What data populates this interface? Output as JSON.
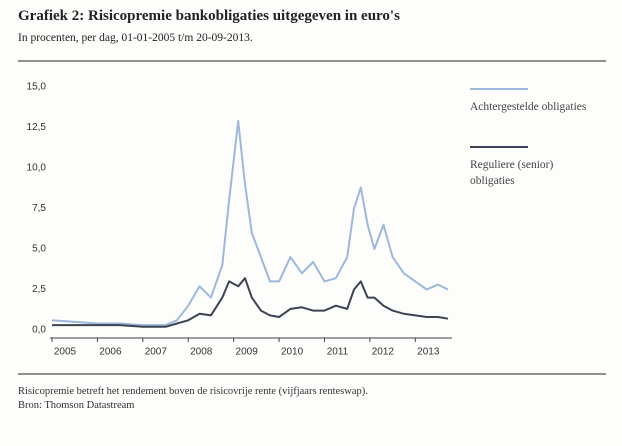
{
  "chart_data": {
    "type": "line",
    "title": "Grafiek 2: Risicopremie bankobligaties uitgegeven in euro's",
    "subtitle": "In procenten, per dag, 01-01-2005 t/m 20-09-2013.",
    "footnote": "Risicopremie betreft het rendement boven de risicovrije rente (vijfjaars renteswap).",
    "source": "Bron: Thomson Datastream",
    "x": [
      2005,
      2005.5,
      2006,
      2006.5,
      2007,
      2007.5,
      2007.75,
      2008,
      2008.25,
      2008.5,
      2008.75,
      2008.9,
      2009.1,
      2009.25,
      2009.4,
      2009.6,
      2009.8,
      2010,
      2010.25,
      2010.5,
      2010.75,
      2011,
      2011.25,
      2011.5,
      2011.65,
      2011.8,
      2011.95,
      2012.1,
      2012.3,
      2012.5,
      2012.75,
      2013,
      2013.25,
      2013.5,
      2013.72
    ],
    "series": [
      {
        "name": "Achtergestelde obligaties",
        "color": "#9cb8dd",
        "values": [
          0.6,
          0.5,
          0.4,
          0.4,
          0.3,
          0.3,
          0.6,
          1.5,
          2.7,
          2.0,
          4.0,
          8.0,
          12.9,
          9.0,
          6.0,
          4.5,
          3.0,
          3.0,
          4.5,
          3.5,
          4.2,
          3.0,
          3.2,
          4.5,
          7.5,
          8.8,
          6.5,
          5.0,
          6.5,
          4.5,
          3.5,
          3.0,
          2.5,
          2.8,
          2.5
        ]
      },
      {
        "name": "Reguliere (senior) obligaties",
        "color": "#3d4352",
        "values": [
          0.3,
          0.3,
          0.3,
          0.3,
          0.2,
          0.2,
          0.4,
          0.6,
          1.0,
          0.9,
          2.0,
          3.0,
          2.7,
          3.2,
          2.0,
          1.2,
          0.9,
          0.8,
          1.3,
          1.4,
          1.2,
          1.2,
          1.5,
          1.3,
          2.5,
          3.0,
          2.0,
          2.0,
          1.5,
          1.2,
          1.0,
          0.9,
          0.8,
          0.8,
          0.7
        ]
      }
    ],
    "xlim": [
      2005,
      2013.72
    ],
    "xticks": [
      2005,
      2006,
      2007,
      2008,
      2009,
      2010,
      2011,
      2012,
      2013
    ],
    "ylim": [
      0,
      15
    ],
    "yticks": [
      {
        "value": 0,
        "label": "0,0"
      },
      {
        "value": 2.5,
        "label": "2,5"
      },
      {
        "value": 5,
        "label": "5,0"
      },
      {
        "value": 7.5,
        "label": "7,5"
      },
      {
        "value": 10,
        "label": "10,0"
      },
      {
        "value": 12.5,
        "label": "12,5"
      },
      {
        "value": 15,
        "label": "15,0"
      }
    ],
    "grid": false
  }
}
